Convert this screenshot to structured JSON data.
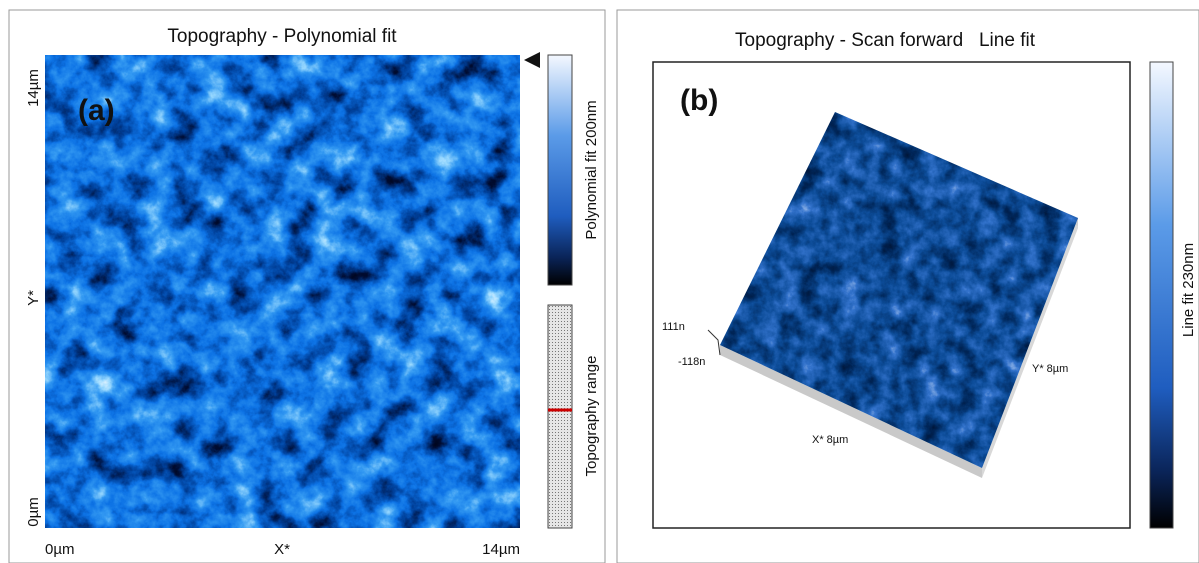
{
  "panels": [
    {
      "label": "(a)",
      "title": "Topography - Polynomial fit",
      "y_axis": {
        "label": "Y*",
        "ticks": [
          "14µm",
          "0µm"
        ]
      },
      "x_axis": {
        "label": "X*",
        "ticks": [
          "0µm",
          "14µm"
        ]
      },
      "colorbar": {
        "label": "Polynomial fit 200nm"
      },
      "range_bar": {
        "label": "Topography range"
      }
    },
    {
      "label": "(b)",
      "title": "Topography - Scan forward   Line fit",
      "z_labels": [
        "111n",
        "-118n"
      ],
      "x_axis_label": "X* 8µm",
      "y_axis_label": "Y* 8µm",
      "colorbar": {
        "label": "Line fit 230nm"
      }
    }
  ]
}
